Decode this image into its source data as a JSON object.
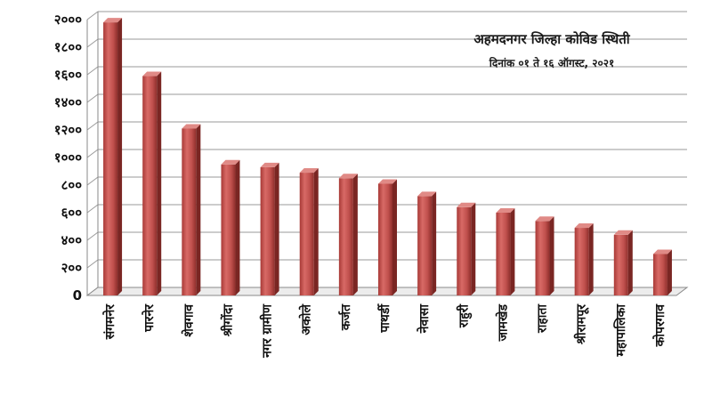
{
  "chart_data": {
    "type": "bar",
    "title": "अहमदनगर जिल्हा कोविड स्थिती",
    "subtitle": "दिनांक ०१ ते १६ ऑगस्ट, २०२१",
    "xlabel": "",
    "ylabel": "",
    "ylim": [
      0,
      2000
    ],
    "yticks": [
      {
        "value": 0,
        "label": "0"
      },
      {
        "value": 200,
        "label": "२००"
      },
      {
        "value": 400,
        "label": "४००"
      },
      {
        "value": 600,
        "label": "६००"
      },
      {
        "value": 800,
        "label": "८००"
      },
      {
        "value": 1000,
        "label": "१०००"
      },
      {
        "value": 1200,
        "label": "१२००"
      },
      {
        "value": 1400,
        "label": "१४००"
      },
      {
        "value": 1600,
        "label": "१६००"
      },
      {
        "value": 1800,
        "label": "१८००"
      },
      {
        "value": 2000,
        "label": "२०००"
      }
    ],
    "categories": [
      "संगमनेर",
      "पारनेर",
      "शेवगाव",
      "श्रीगोंदा",
      "नगर ग्रामीण",
      "अकोले",
      "कर्जत",
      "पाथर्डी",
      "नेवासा",
      "राहुरी",
      "जामखेड",
      "राहाता",
      "श्रीरामपूर",
      "महापालिका",
      "कोपरगाव"
    ],
    "values": [
      1980,
      1590,
      1210,
      950,
      930,
      890,
      850,
      810,
      720,
      640,
      600,
      540,
      490,
      440,
      300
    ],
    "bar_color": "#c0504d",
    "grid": true,
    "legend": "none"
  }
}
